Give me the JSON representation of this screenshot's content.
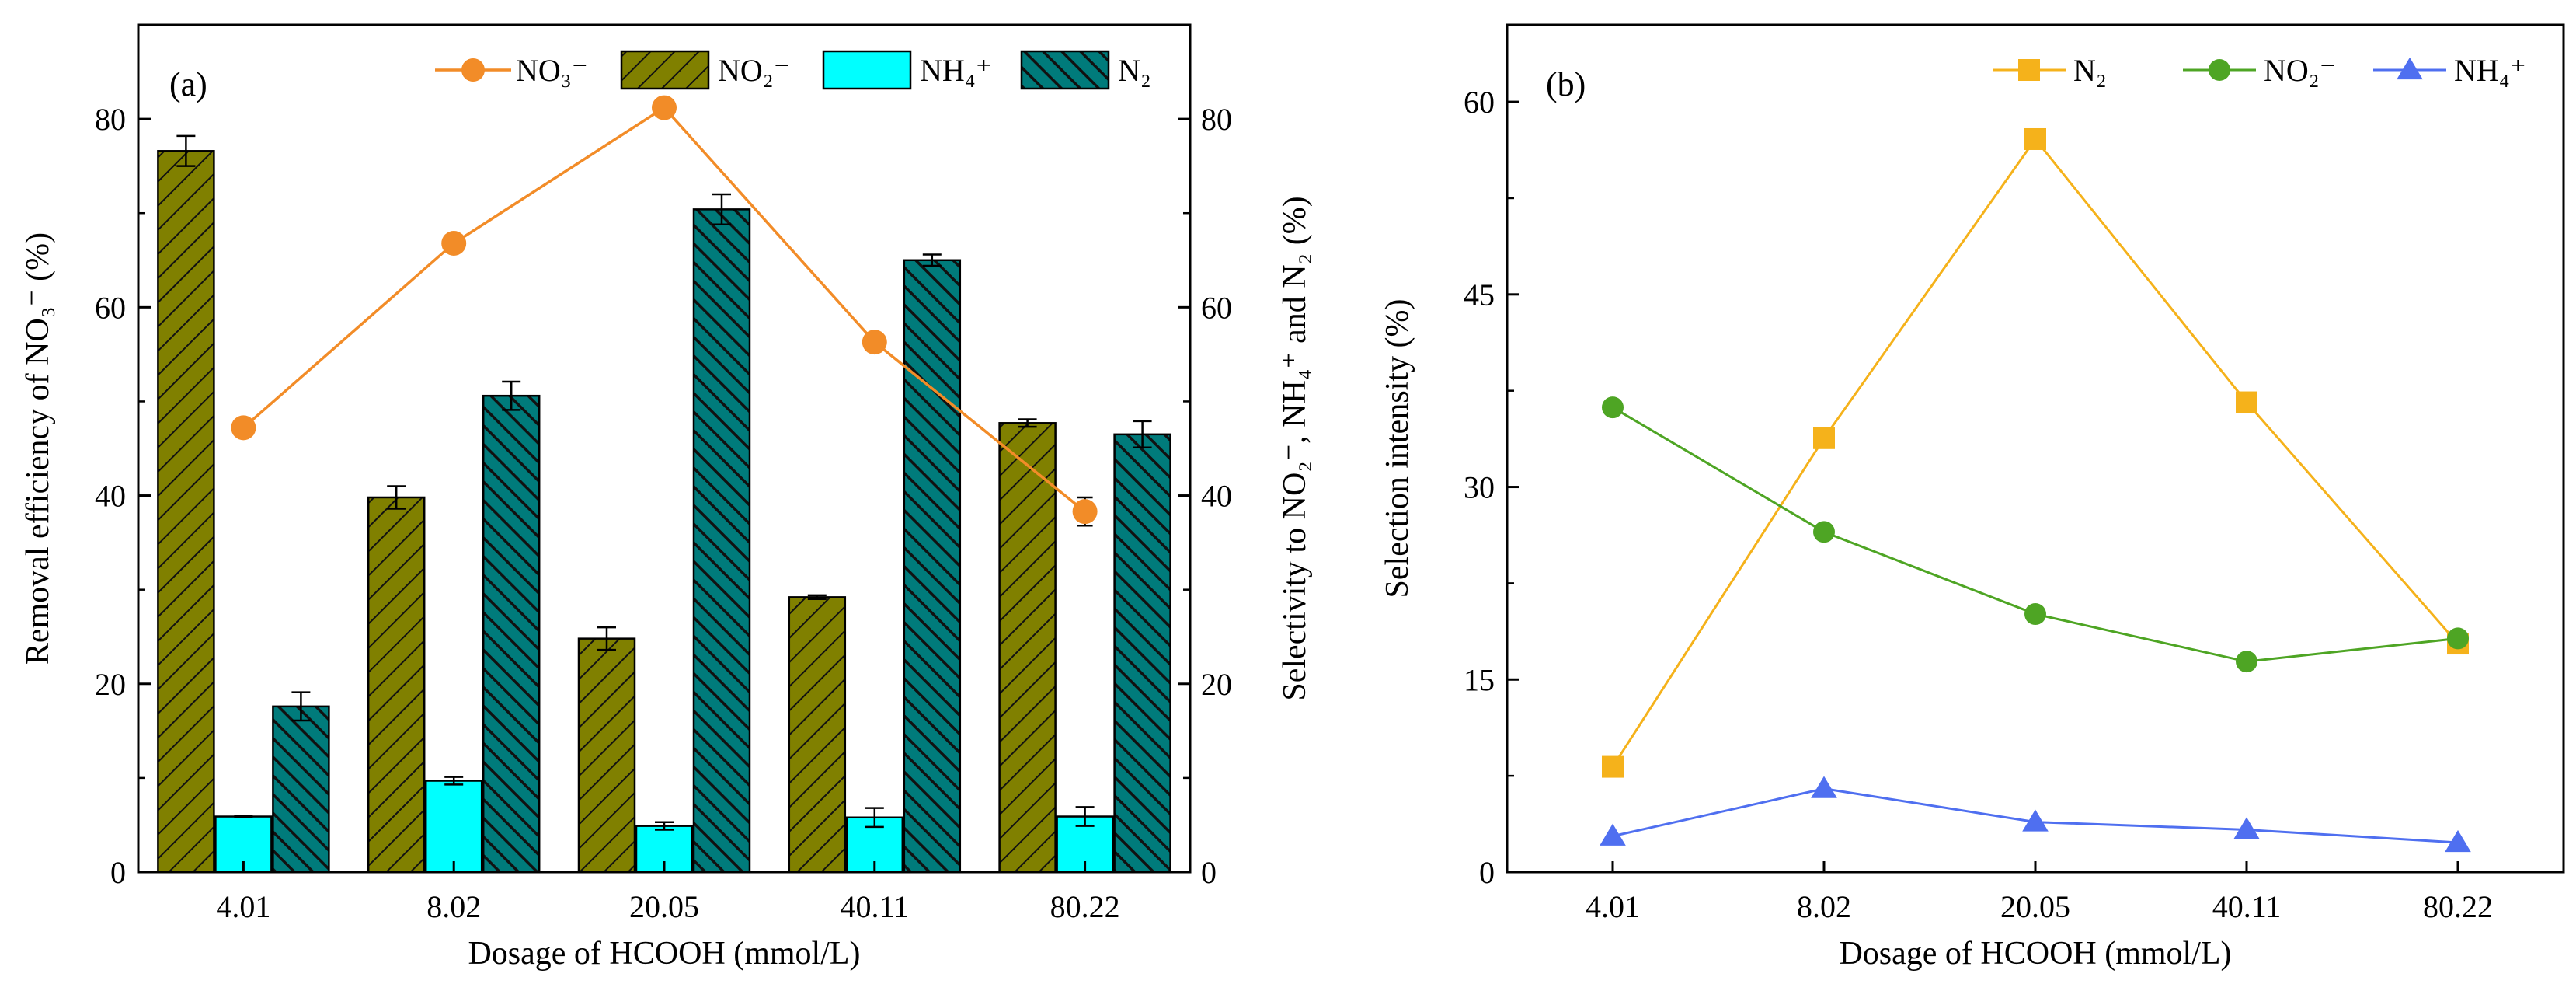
{
  "chart_data": [
    {
      "panel_label": "(a)",
      "type": "bar",
      "categories": [
        "4.01",
        "8.02",
        "20.05",
        "40.11",
        "80.22"
      ],
      "xlabel": "Dosage of HCOOH (mmol/L)",
      "ylabel_left": "Removal efficiency of NO₃⁻ (%)",
      "ylabel_right": "Selectivity to NO₂⁻, NH₄⁺ and N₂ (%)",
      "ylim_left": [
        0,
        90
      ],
      "ylim_right": [
        0,
        90
      ],
      "yticks_left": [
        "0",
        "20",
        "40",
        "60",
        "80"
      ],
      "yticks_right": [
        "0",
        "20",
        "40",
        "60",
        "80"
      ],
      "legend_position": "top",
      "series": [
        {
          "name": "NO₃⁻",
          "kind": "line",
          "axis": "left",
          "color": "#F28C28",
          "values": [
            47.2,
            66.8,
            81.2,
            56.3,
            38.3
          ],
          "errors": [
            0.3,
            0.3,
            0.5,
            0.3,
            1.5
          ]
        },
        {
          "name": "NO₂⁻",
          "kind": "bar",
          "axis": "right",
          "color": "#808000",
          "hatch": "diagonal",
          "values": [
            76.6,
            39.8,
            24.8,
            29.2,
            47.7
          ],
          "errors": [
            1.6,
            1.2,
            1.2,
            0.2,
            0.4
          ]
        },
        {
          "name": "NH₄⁺",
          "kind": "bar",
          "axis": "right",
          "color": "#00FFFF",
          "hatch": "none",
          "values": [
            5.9,
            9.7,
            4.9,
            5.8,
            5.9
          ],
          "errors": [
            0.1,
            0.4,
            0.4,
            1.0,
            1.0
          ]
        },
        {
          "name": "N₂",
          "kind": "bar",
          "axis": "right",
          "color": "#007B7B",
          "hatch": "diagonal-dense",
          "values": [
            17.6,
            50.6,
            70.4,
            65.0,
            46.5
          ],
          "errors": [
            1.5,
            1.5,
            1.6,
            0.6,
            1.4
          ]
        }
      ]
    },
    {
      "panel_label": "(b)",
      "type": "line",
      "categories": [
        "4.01",
        "8.02",
        "20.05",
        "40.11",
        "80.22"
      ],
      "xlabel": "Dosage of HCOOH (mmol/L)",
      "ylabel": "Selection intensity (%)",
      "ylim": [
        0,
        66
      ],
      "yticks": [
        "0",
        "15",
        "30",
        "45",
        "60"
      ],
      "legend_position": "top-right",
      "series": [
        {
          "name": "N₂",
          "marker": "square",
          "color": "#F5B21B",
          "values": [
            8.2,
            33.8,
            57.1,
            36.6,
            17.8
          ]
        },
        {
          "name": "NO₂⁻",
          "marker": "circle",
          "color": "#4EA524",
          "values": [
            36.2,
            26.5,
            20.1,
            16.4,
            18.2
          ]
        },
        {
          "name": "NH₄⁺",
          "marker": "triangle",
          "color": "#4F6FF0",
          "values": [
            2.8,
            6.5,
            3.9,
            3.3,
            2.3
          ]
        }
      ]
    }
  ]
}
